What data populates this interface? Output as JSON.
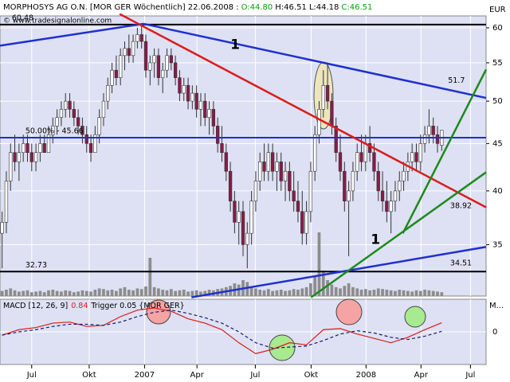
{
  "header": {
    "title": "MORPHOSYS AG O.N. [MOR GER  Wöchentlich] 22.06.2008 :",
    "open": "O:44.80",
    "high": "H:46.51",
    "low": "L:44.18",
    "close": "C:46.51",
    "watermark": "© www.tradesignalonline.com"
  },
  "chart_data": {
    "type": "candlestick",
    "unit": "EUR",
    "log_scale": true,
    "grid": true,
    "xlim": [
      -0.5,
      114.5
    ],
    "ylim": [
      30.8,
      61.8
    ],
    "yticks": [
      35,
      40,
      45,
      50,
      55,
      60
    ],
    "xticks": [
      {
        "value": 7,
        "label": "Jul"
      },
      {
        "value": 20.6,
        "label": "Okt"
      },
      {
        "value": 33.7,
        "label": "2007"
      },
      {
        "value": 46.1,
        "label": "Apr"
      },
      {
        "value": 59.9,
        "label": "Jul"
      },
      {
        "value": 73.1,
        "label": "Okt"
      },
      {
        "value": 86.1,
        "label": "2008"
      },
      {
        "value": 99.1,
        "label": "Apr"
      },
      {
        "value": 110.8,
        "label": "Jul"
      }
    ],
    "up_color": "#ffffff",
    "down_color": "#8b1a4a",
    "ohlc": [
      [
        36,
        38,
        33,
        37
      ],
      [
        37,
        42,
        36,
        41
      ],
      [
        41,
        45,
        40,
        44
      ],
      [
        44,
        46,
        42,
        43
      ],
      [
        43,
        45,
        41,
        44
      ],
      [
        44,
        46,
        43,
        45
      ],
      [
        45,
        46,
        43,
        44
      ],
      [
        44,
        45,
        42,
        43
      ],
      [
        43,
        45,
        42,
        44
      ],
      [
        44,
        46,
        43,
        45
      ],
      [
        45,
        46,
        44,
        44
      ],
      [
        44,
        47,
        44,
        46
      ],
      [
        46,
        48,
        45,
        47
      ],
      [
        47,
        49,
        46,
        48
      ],
      [
        48,
        50,
        47,
        49
      ],
      [
        49,
        51,
        48,
        50
      ],
      [
        50,
        51,
        48,
        49
      ],
      [
        49,
        50,
        47,
        48
      ],
      [
        48,
        49,
        46,
        47
      ],
      [
        47,
        48,
        45,
        46
      ],
      [
        46,
        47,
        44,
        45
      ],
      [
        45,
        46,
        43,
        44
      ],
      [
        44,
        47,
        44,
        46
      ],
      [
        46,
        49,
        45,
        48
      ],
      [
        48,
        51,
        47,
        50
      ],
      [
        50,
        53,
        49,
        52
      ],
      [
        52,
        55,
        51,
        54
      ],
      [
        54,
        56,
        52,
        53
      ],
      [
        53,
        57,
        52,
        56
      ],
      [
        56,
        58,
        54,
        57
      ],
      [
        57,
        59,
        55,
        56
      ],
      [
        56,
        59,
        55,
        58
      ],
      [
        58,
        60,
        57,
        59
      ],
      [
        59,
        60.5,
        57,
        58
      ],
      [
        58,
        59,
        53,
        54
      ],
      [
        54,
        56,
        52,
        55
      ],
      [
        55,
        57,
        53,
        56
      ],
      [
        56,
        57,
        52,
        53
      ],
      [
        53,
        55,
        51,
        54
      ],
      [
        54,
        57,
        53,
        56
      ],
      [
        56,
        57,
        54,
        55
      ],
      [
        55,
        56,
        52,
        53
      ],
      [
        53,
        54,
        50,
        51
      ],
      [
        51,
        53,
        50,
        52
      ],
      [
        52,
        53,
        49,
        50
      ],
      [
        50,
        52,
        49,
        51
      ],
      [
        51,
        52,
        48,
        49
      ],
      [
        49,
        51,
        47,
        50
      ],
      [
        50,
        51,
        47,
        48
      ],
      [
        48,
        50,
        46,
        49
      ],
      [
        49,
        50,
        46,
        47
      ],
      [
        47,
        48,
        44,
        45
      ],
      [
        45,
        47,
        43,
        44
      ],
      [
        44,
        45,
        41,
        42
      ],
      [
        42,
        43,
        38,
        39
      ],
      [
        39,
        40,
        36,
        37
      ],
      [
        37,
        39,
        35,
        38
      ],
      [
        38,
        39,
        34,
        35
      ],
      [
        35,
        37,
        33,
        36
      ],
      [
        36,
        40,
        35,
        39
      ],
      [
        39,
        42,
        38,
        41
      ],
      [
        41,
        44,
        40,
        43
      ],
      [
        43,
        45,
        41,
        42
      ],
      [
        42,
        45,
        41,
        44
      ],
      [
        44,
        45,
        41,
        42
      ],
      [
        42,
        44,
        40,
        43
      ],
      [
        43,
        44,
        40,
        41
      ],
      [
        41,
        43,
        39,
        42
      ],
      [
        42,
        43,
        39,
        40
      ],
      [
        40,
        42,
        38,
        39
      ],
      [
        39,
        41,
        37,
        38
      ],
      [
        38,
        40,
        35,
        36
      ],
      [
        36,
        39,
        35,
        38
      ],
      [
        38,
        43,
        37,
        42
      ],
      [
        42,
        47,
        41,
        46
      ],
      [
        46,
        50,
        45,
        49
      ],
      [
        49,
        54,
        48,
        52
      ],
      [
        52,
        55,
        49,
        50
      ],
      [
        50,
        51,
        46,
        47
      ],
      [
        47,
        48,
        43,
        44
      ],
      [
        44,
        46,
        41,
        42
      ],
      [
        42,
        43,
        38,
        39
      ],
      [
        39,
        41,
        34,
        40
      ],
      [
        40,
        43,
        39,
        42
      ],
      [
        42,
        45,
        41,
        44
      ],
      [
        44,
        46,
        42,
        43
      ],
      [
        43,
        46,
        42,
        45
      ],
      [
        45,
        47,
        43,
        44
      ],
      [
        44,
        45,
        41,
        42
      ],
      [
        42,
        43,
        39,
        40
      ],
      [
        40,
        42,
        38,
        39
      ],
      [
        39,
        41,
        37,
        38
      ],
      [
        38,
        40,
        36,
        39
      ],
      [
        39,
        41,
        38,
        40
      ],
      [
        40,
        42,
        39,
        41
      ],
      [
        41,
        43,
        40,
        42
      ],
      [
        42,
        44,
        41,
        43
      ],
      [
        43,
        45,
        42,
        44
      ],
      [
        44,
        45,
        42,
        43
      ],
      [
        43,
        46,
        42,
        45
      ],
      [
        45,
        47,
        44,
        46
      ],
      [
        46,
        49,
        45,
        47
      ],
      [
        47,
        48,
        45,
        46
      ],
      [
        46,
        47,
        44,
        45
      ],
      [
        44.8,
        46.51,
        44.18,
        46.51
      ]
    ],
    "volume": [
      8,
      10,
      12,
      9,
      7,
      8,
      9,
      6,
      7,
      8,
      6,
      9,
      10,
      8,
      7,
      9,
      8,
      6,
      7,
      9,
      8,
      7,
      10,
      12,
      11,
      9,
      10,
      8,
      12,
      14,
      10,
      9,
      12,
      11,
      15,
      60,
      14,
      12,
      10,
      9,
      11,
      8,
      9,
      10,
      7,
      8,
      9,
      7,
      8,
      10,
      9,
      11,
      12,
      14,
      16,
      20,
      18,
      25,
      22,
      15,
      12,
      10,
      9,
      11,
      8,
      9,
      10,
      8,
      9,
      11,
      10,
      12,
      14,
      20,
      30,
      100,
      40,
      25,
      18,
      14,
      12,
      16,
      20,
      14,
      12,
      10,
      11,
      9,
      10,
      12,
      11,
      10,
      9,
      8,
      10,
      9,
      8,
      7,
      9,
      8,
      10,
      9,
      8,
      7,
      6
    ],
    "volume_color": "#8c8c8c",
    "trendlines": [
      {
        "color": "#1f2fd0",
        "x": [
          -0.5,
          33.5
        ],
        "y": [
          57.4,
          60.6
        ]
      },
      {
        "color": "#1f2fd0",
        "x": [
          33.5,
          114.5
        ],
        "y": [
          60.6,
          50.4
        ],
        "label": 51.7,
        "lx": 105.5,
        "ly": 52.6
      },
      {
        "color": "#dd1b1b",
        "x": [
          27.8,
          114.5
        ],
        "y": [
          62.1,
          38.4
        ],
        "label": "1",
        "lx": 54,
        "ly": 57.5
      },
      {
        "color": "#1f2fd0",
        "x": [
          44.8,
          114.5
        ],
        "y": [
          30.7,
          34.8
        ],
        "label": 34.51,
        "lx": 106,
        "ly": 33.4
      },
      {
        "color": "#1c8a1c",
        "x": [
          73.1,
          114.5
        ],
        "y": [
          30.7,
          41.9
        ],
        "label": 38.92,
        "lx": 106,
        "ly": 38.5
      },
      {
        "color": "#1c8a1c",
        "x": [
          94.8,
          114.5
        ],
        "y": [
          36.0,
          54.1
        ],
        "label": "1",
        "lx": 87.2,
        "ly": 35.4
      }
    ],
    "levels": [
      {
        "value": 60.48,
        "color": "#000000",
        "label": 60.48,
        "lx": 2.3
      },
      {
        "value": 45.66,
        "color": "#1f2fd0",
        "label": "50.00% - 45.66",
        "lx": 5.5
      },
      {
        "value": 32.73,
        "color": "#000000",
        "label": 32.73,
        "lx": 5.5
      }
    ],
    "macd": {
      "title": "MACD [12, 26, 9]",
      "value": 0.84,
      "trigger_label": "Trigger",
      "trigger": 0.05,
      "symbol": "{MOR GER}",
      "axis_label": "M...",
      "ylim": [
        -3,
        3
      ],
      "yticks": [
        0
      ],
      "x": [
        0,
        4,
        8,
        12,
        16,
        20,
        24,
        28,
        32,
        36,
        40,
        44,
        48,
        52,
        56,
        60,
        64,
        68,
        72,
        76,
        80,
        84,
        88,
        92,
        96,
        100,
        104
      ],
      "macd_values": [
        -0.3,
        0.2,
        0.4,
        0.8,
        0.9,
        0.5,
        0.6,
        1.4,
        2.0,
        2.2,
        1.9,
        1.2,
        0.8,
        0.2,
        -1.0,
        -2.0,
        -1.6,
        -1.0,
        -1.2,
        0.2,
        0.3,
        -0.2,
        -0.6,
        -1.0,
        -0.5,
        0.2,
        0.84
      ],
      "signal_values": [
        -0.3,
        0.0,
        0.2,
        0.5,
        0.7,
        0.7,
        0.6,
        0.9,
        1.4,
        1.8,
        2.0,
        1.7,
        1.3,
        0.8,
        0.0,
        -1.0,
        -1.5,
        -1.4,
        -1.3,
        -0.8,
        -0.2,
        0.1,
        -0.1,
        -0.5,
        -0.7,
        -0.4,
        0.05
      ],
      "macd_color": "#dd1b1b",
      "signal_color": "#1a1a6e"
    }
  }
}
